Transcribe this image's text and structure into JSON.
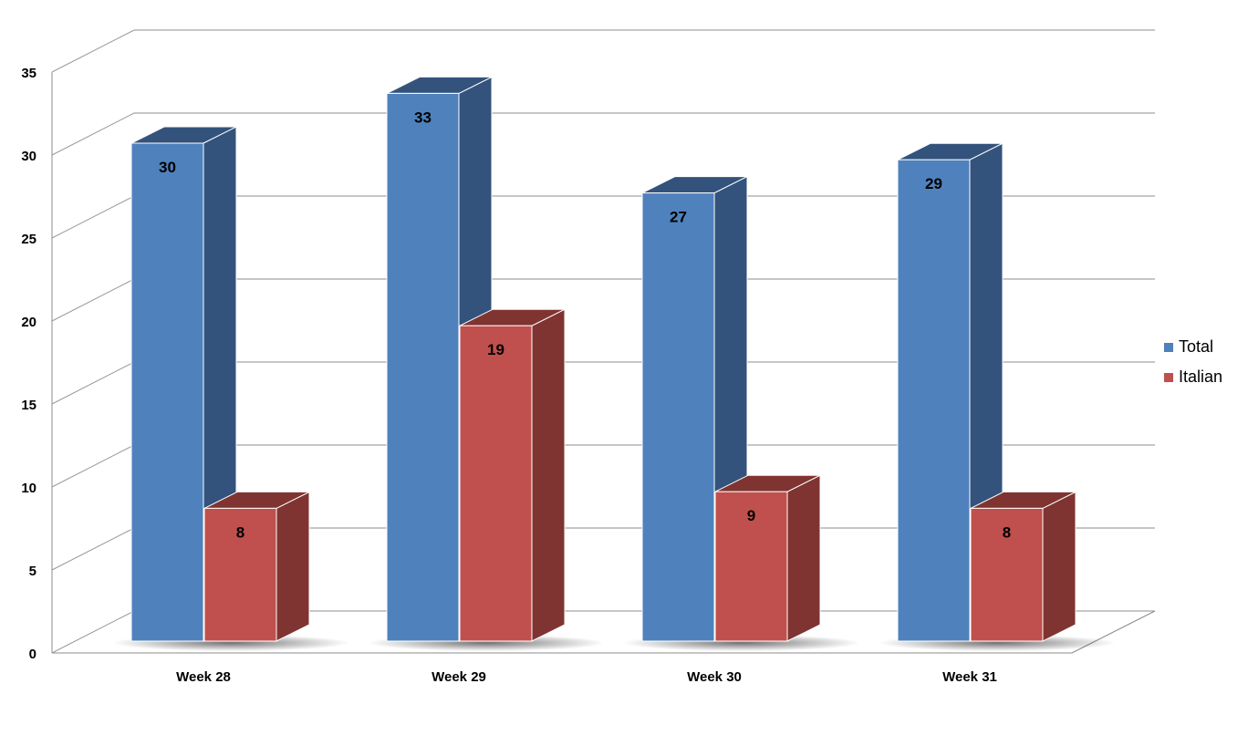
{
  "chart_data": {
    "type": "bar",
    "categories": [
      "Week 28",
      "Week 29",
      "Week 30",
      "Week 31"
    ],
    "series": [
      {
        "name": "Total",
        "values": [
          30,
          33,
          27,
          29
        ],
        "color": "#4F81BD",
        "side_color": "#33537C"
      },
      {
        "name": "Italian",
        "values": [
          8,
          19,
          9,
          8
        ],
        "color": "#C0504D",
        "side_color": "#7F3432"
      }
    ],
    "ylim": [
      0,
      35
    ],
    "yticks": [
      "0",
      "5",
      "10",
      "15",
      "20",
      "25",
      "30",
      "35"
    ],
    "grid": true,
    "legend": "right",
    "style": "3d-clustered-column"
  }
}
